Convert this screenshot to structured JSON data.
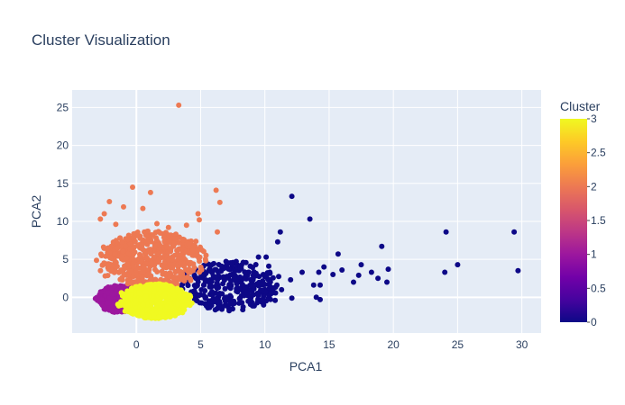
{
  "chart_data": {
    "type": "scatter",
    "title": "Cluster Visualization",
    "xlabel": "PCA1",
    "ylabel": "PCA2",
    "xlim": [
      -5,
      31.5
    ],
    "ylim": [
      -4.7,
      27.3
    ],
    "xticks": [
      0,
      5,
      10,
      15,
      20,
      25,
      30
    ],
    "yticks": [
      0,
      5,
      10,
      15,
      20,
      25
    ],
    "grid": true,
    "colorbar": {
      "title": "Cluster",
      "range": [
        0,
        3
      ],
      "ticks": [
        0,
        0.5,
        1,
        1.5,
        2,
        2.5,
        3
      ],
      "colors": [
        "#0d0887",
        "#46039f",
        "#7201a8",
        "#9c179e",
        "#bd3786",
        "#d8576b",
        "#ed7953",
        "#fb9f3a",
        "#fdca26",
        "#f0f921"
      ]
    },
    "plot_bg": "#e5ecf6",
    "series": [
      {
        "cluster": 0,
        "color": "#0d0887",
        "points": [
          [
            12.1,
            13.3
          ],
          [
            13.5,
            10.3
          ],
          [
            11.2,
            8.6
          ],
          [
            11.0,
            7.3
          ],
          [
            10.1,
            5.3
          ],
          [
            10.3,
            4.1
          ],
          [
            9.5,
            5.3
          ],
          [
            12.1,
            -0.1
          ],
          [
            12.9,
            3.3
          ],
          [
            14.2,
            3.3
          ],
          [
            14.6,
            4.0
          ],
          [
            13.8,
            1.6
          ],
          [
            14.3,
            1.6
          ],
          [
            14.0,
            0.0
          ],
          [
            15.7,
            5.7
          ],
          [
            16.0,
            3.6
          ],
          [
            15.3,
            3.0
          ],
          [
            16.9,
            2.0
          ],
          [
            17.3,
            2.9
          ],
          [
            17.5,
            4.3
          ],
          [
            18.3,
            3.3
          ],
          [
            19.1,
            6.7
          ],
          [
            19.6,
            3.7
          ],
          [
            18.8,
            2.5
          ],
          [
            19.5,
            2.0
          ],
          [
            24.1,
            8.6
          ],
          [
            24.0,
            3.3
          ],
          [
            25.0,
            4.3
          ],
          [
            29.4,
            8.6
          ],
          [
            29.7,
            3.5
          ],
          [
            14.3,
            -0.3
          ],
          [
            12.0,
            2.3
          ],
          [
            11.3,
            1.0
          ],
          [
            10.5,
            0.5
          ],
          [
            10.8,
            -0.4
          ]
        ],
        "cloud": {
          "x_range": [
            3.5,
            11
          ],
          "y_range": [
            -1.8,
            4.8
          ],
          "count": 320,
          "seed": 11
        }
      },
      {
        "cluster": 1,
        "color": "#9c179e",
        "points": [],
        "cloud": {
          "x_range": [
            -3.0,
            0.2
          ],
          "y_range": [
            -2.0,
            1.6
          ],
          "count": 420,
          "seed": 23
        }
      },
      {
        "cluster": 2,
        "color": "#ed7953",
        "points": [
          [
            3.3,
            25.3
          ],
          [
            -0.3,
            14.5
          ],
          [
            1.1,
            13.8
          ],
          [
            6.2,
            14.1
          ],
          [
            6.5,
            12.5
          ],
          [
            -2.1,
            12.6
          ],
          [
            -1.0,
            11.9
          ],
          [
            0.5,
            11.7
          ],
          [
            -2.5,
            11.0
          ],
          [
            4.8,
            11.0
          ],
          [
            4.9,
            10.2
          ],
          [
            -2.8,
            10.3
          ],
          [
            1.6,
            9.7
          ],
          [
            3.9,
            9.5
          ],
          [
            2.5,
            9.2
          ],
          [
            6.3,
            8.6
          ],
          [
            -1.6,
            9.6
          ]
        ],
        "cloud": {
          "x_range": [
            -2.8,
            5.2
          ],
          "y_range": [
            1.2,
            8.8
          ],
          "count": 560,
          "seed": 37
        }
      },
      {
        "cluster": 3,
        "color": "#f0f921",
        "points": [],
        "cloud": {
          "x_range": [
            -1.2,
            4.1
          ],
          "y_range": [
            -2.8,
            1.8
          ],
          "count": 700,
          "seed": 53
        }
      }
    ]
  }
}
